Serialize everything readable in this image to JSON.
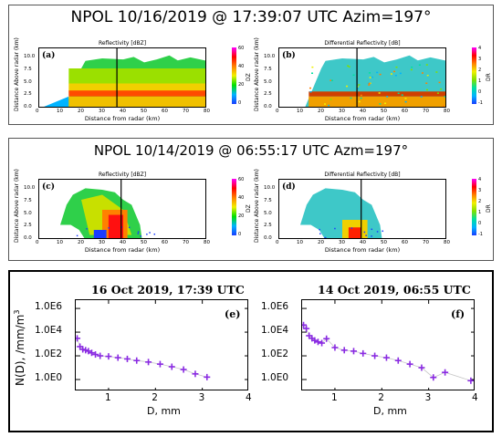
{
  "top_panel": {
    "title": "NPOL 10/16/2019 @ 17:39:07 UTC    Azim=197°",
    "a": {
      "letter": "(a)",
      "subtitle": "Reflectivity [dBZ]",
      "cbar_label": "DZ",
      "cbar_ticks": [
        "60",
        "40",
        "20",
        "0"
      ],
      "cbar_colors": [
        "#1a3cff",
        "#00b4ff",
        "#00e000",
        "#f0f000",
        "#ff8000",
        "#ff0000",
        "#ff00ff"
      ]
    },
    "b": {
      "letter": "(b)",
      "subtitle": "Differential Reflectivity [dB]",
      "cbar_label": "DR",
      "cbar_ticks": [
        "4",
        "3",
        "2",
        "1",
        "0",
        "-1"
      ],
      "cbar_colors": [
        "#1a3cff",
        "#00b4ff",
        "#00e0a0",
        "#80e000",
        "#f0f000",
        "#ff8000",
        "#ff0000",
        "#ff00ff"
      ]
    }
  },
  "mid_panel": {
    "title": "NPOL 10/14/2019 @ 06:55:17 UTC  Azm=197°",
    "c": {
      "letter": "(c)",
      "subtitle": "Reflectivity [dBZ]",
      "cbar_label": "DZ",
      "cbar_ticks": [
        "60",
        "40",
        "20",
        "0"
      ]
    },
    "d": {
      "letter": "(d)",
      "subtitle": "Differential Reflectivity [dB]",
      "cbar_label": "DR",
      "cbar_ticks": [
        "4",
        "3",
        "2",
        "1",
        "0",
        "-1"
      ]
    }
  },
  "radar_axes": {
    "ylabel": "Distance Above radar (km)",
    "xlabel": "Distance from radar (km)",
    "yticks": [
      "10.0",
      "7.5",
      "5.0",
      "2.5",
      "0.0"
    ],
    "xticks": [
      "0",
      "10",
      "20",
      "30",
      "40",
      "50",
      "60",
      "70",
      "80"
    ]
  },
  "bottom_panel": {
    "e": {
      "title": "16 Oct 2019, 17:39 UTC",
      "letter": "(e)"
    },
    "f": {
      "title": "14 Oct 2019, 06:55 UTC",
      "letter": "(f)"
    },
    "ylabel": "N(D), /mm/m",
    "ylabel_sup": "3",
    "yticks": [
      "1.0E6",
      "1.0E4",
      "1.0E2",
      "1.0E0"
    ],
    "xticks": [
      "1",
      "2",
      "3",
      "4"
    ],
    "xlabel": "D, mm",
    "marker_color": "#8a2be2"
  },
  "chart_data": [
    {
      "type": "scatter",
      "title": "16 Oct 2019, 17:39 UTC",
      "xlabel": "D, mm",
      "ylabel": "N(D), /mm/m3",
      "yscale": "log",
      "xlim": [
        0.3,
        4.0
      ],
      "ylim": [
        0.1,
        1000000
      ],
      "series": [
        {
          "x": [
            0.33,
            0.39,
            0.45,
            0.51,
            0.57,
            0.64,
            0.72,
            0.82,
            1.0,
            1.2,
            1.4,
            1.6,
            1.85,
            2.1,
            2.35,
            2.6,
            2.85,
            3.1
          ],
          "y": [
            3000,
            600,
            350,
            300,
            250,
            180,
            130,
            100,
            90,
            70,
            55,
            40,
            30,
            20,
            12,
            7,
            3,
            1.6
          ]
        }
      ]
    },
    {
      "type": "scatter",
      "title": "14 Oct 2019, 06:55 UTC",
      "xlabel": "D, mm",
      "ylabel": "N(D), /mm/m3",
      "yscale": "log",
      "xlim": [
        0.3,
        4.0
      ],
      "ylim": [
        0.1,
        1000000
      ],
      "series": [
        {
          "x": [
            0.33,
            0.39,
            0.45,
            0.51,
            0.57,
            0.64,
            0.72,
            0.82,
            1.0,
            1.2,
            1.4,
            1.6,
            1.85,
            2.1,
            2.35,
            2.6,
            2.85,
            3.1,
            3.35,
            3.9
          ],
          "y": [
            40000,
            20000,
            5000,
            3000,
            2000,
            1500,
            1200,
            2800,
            500,
            300,
            250,
            160,
            100,
            70,
            40,
            20,
            10,
            1.5,
            4,
            0.8
          ]
        }
      ]
    }
  ]
}
